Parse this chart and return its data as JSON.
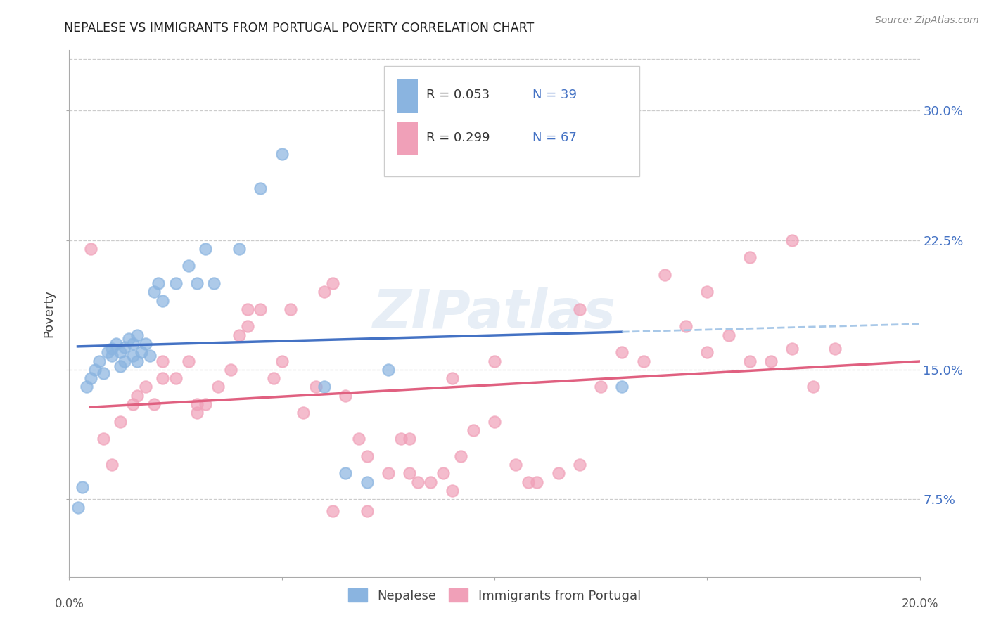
{
  "title": "NEPALESE VS IMMIGRANTS FROM PORTUGAL POVERTY CORRELATION CHART",
  "source": "Source: ZipAtlas.com",
  "ylabel": "Poverty",
  "ytick_labels": [
    "7.5%",
    "15.0%",
    "22.5%",
    "30.0%"
  ],
  "ytick_values": [
    0.075,
    0.15,
    0.225,
    0.3
  ],
  "xlim": [
    0.0,
    0.2
  ],
  "ylim": [
    0.03,
    0.335
  ],
  "watermark": "ZIPatlas",
  "legend_bottom_blue": "Nepalese",
  "legend_bottom_pink": "Immigrants from Portugal",
  "blue_color": "#8ab4e0",
  "pink_color": "#f0a0b8",
  "blue_line_color": "#4472c4",
  "pink_line_color": "#e06080",
  "blue_dash_color": "#a8c8e8",
  "nepalese_x": [
    0.002,
    0.003,
    0.004,
    0.005,
    0.006,
    0.007,
    0.008,
    0.009,
    0.01,
    0.01,
    0.011,
    0.012,
    0.012,
    0.013,
    0.013,
    0.014,
    0.015,
    0.015,
    0.016,
    0.016,
    0.017,
    0.018,
    0.019,
    0.02,
    0.021,
    0.022,
    0.025,
    0.028,
    0.03,
    0.032,
    0.034,
    0.04,
    0.045,
    0.05,
    0.06,
    0.065,
    0.07,
    0.075,
    0.13
  ],
  "nepalese_y": [
    0.07,
    0.082,
    0.14,
    0.145,
    0.15,
    0.155,
    0.148,
    0.16,
    0.162,
    0.158,
    0.165,
    0.152,
    0.16,
    0.155,
    0.163,
    0.168,
    0.158,
    0.165,
    0.155,
    0.17,
    0.16,
    0.165,
    0.158,
    0.195,
    0.2,
    0.19,
    0.2,
    0.21,
    0.2,
    0.22,
    0.2,
    0.22,
    0.255,
    0.275,
    0.14,
    0.09,
    0.085,
    0.15,
    0.14
  ],
  "portugal_x": [
    0.005,
    0.008,
    0.01,
    0.012,
    0.015,
    0.016,
    0.018,
    0.02,
    0.022,
    0.022,
    0.025,
    0.028,
    0.03,
    0.03,
    0.032,
    0.035,
    0.038,
    0.04,
    0.042,
    0.042,
    0.045,
    0.048,
    0.05,
    0.052,
    0.055,
    0.058,
    0.06,
    0.062,
    0.065,
    0.068,
    0.07,
    0.075,
    0.078,
    0.08,
    0.082,
    0.085,
    0.088,
    0.09,
    0.092,
    0.095,
    0.1,
    0.105,
    0.108,
    0.11,
    0.115,
    0.12,
    0.125,
    0.13,
    0.135,
    0.14,
    0.145,
    0.15,
    0.155,
    0.16,
    0.165,
    0.17,
    0.175,
    0.18,
    0.062,
    0.07,
    0.08,
    0.09,
    0.1,
    0.12,
    0.15,
    0.16,
    0.17
  ],
  "portugal_y": [
    0.22,
    0.11,
    0.095,
    0.12,
    0.13,
    0.135,
    0.14,
    0.13,
    0.145,
    0.155,
    0.145,
    0.155,
    0.125,
    0.13,
    0.13,
    0.14,
    0.15,
    0.17,
    0.175,
    0.185,
    0.185,
    0.145,
    0.155,
    0.185,
    0.125,
    0.14,
    0.195,
    0.2,
    0.135,
    0.11,
    0.1,
    0.09,
    0.11,
    0.09,
    0.085,
    0.085,
    0.09,
    0.08,
    0.1,
    0.115,
    0.12,
    0.095,
    0.085,
    0.085,
    0.09,
    0.095,
    0.14,
    0.16,
    0.155,
    0.205,
    0.175,
    0.16,
    0.17,
    0.155,
    0.155,
    0.162,
    0.14,
    0.162,
    0.068,
    0.068,
    0.11,
    0.145,
    0.155,
    0.185,
    0.195,
    0.215,
    0.225
  ]
}
